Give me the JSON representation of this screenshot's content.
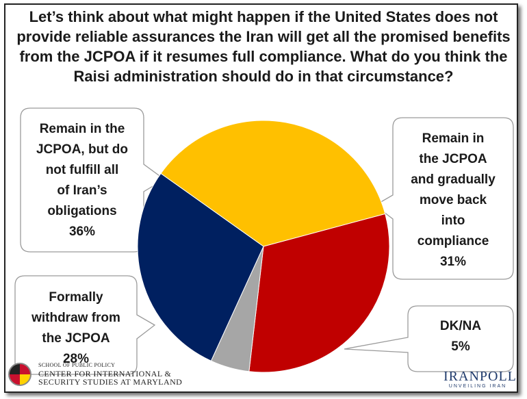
{
  "title": "Let’s think about what might happen if the United States does not provide reliable assurances the Iran will get all the promised benefits from the JCPOA if it resumes full compliance. What do you think the Raisi administration should do in that circumstance?",
  "chart_data": {
    "type": "pie",
    "slices": [
      {
        "label": "Remain in the JCPOA and gradually move back into compliance",
        "value": 31,
        "value_label": "31%",
        "color": "#c00000"
      },
      {
        "label": "DK/NA",
        "value": 5,
        "value_label": "5%",
        "color": "#a6a6a6"
      },
      {
        "label": "Formally withdraw from the JCPOA",
        "value": 28,
        "value_label": "28%",
        "color": "#002060"
      },
      {
        "label": "Remain in the JCPOA, but do not fulfill all of Iran’s obligations",
        "value": 36,
        "value_label": "36%",
        "color": "#ffc000"
      }
    ]
  },
  "callouts": {
    "remain_comply": {
      "lines": [
        "Remain in",
        "the JCPOA",
        "and gradually",
        "move back",
        "into",
        "compliance"
      ],
      "value": "31%"
    },
    "dkna": {
      "lines": [
        "DK/NA"
      ],
      "value": "5%"
    },
    "withdraw": {
      "lines": [
        "Formally",
        "withdraw from",
        "the JCPOA"
      ],
      "value": "28%"
    },
    "remain_not_fulfill": {
      "lines": [
        "Remain in the",
        "JCPOA, but do",
        "not fulfill all",
        "of Iran’s",
        "obligations"
      ],
      "value": "36%"
    }
  },
  "footer": {
    "school": "SCHOOL OF PUBLIC POLICY",
    "center_line1": "CENTER FOR INTERNATIONAL &",
    "center_line2": "SECURITY STUDIES AT MARYLAND",
    "logo": "IRANPOLL",
    "tagline": "UNVEILING IRAN"
  },
  "icons": {
    "umd_seal": "university-seal-icon"
  }
}
